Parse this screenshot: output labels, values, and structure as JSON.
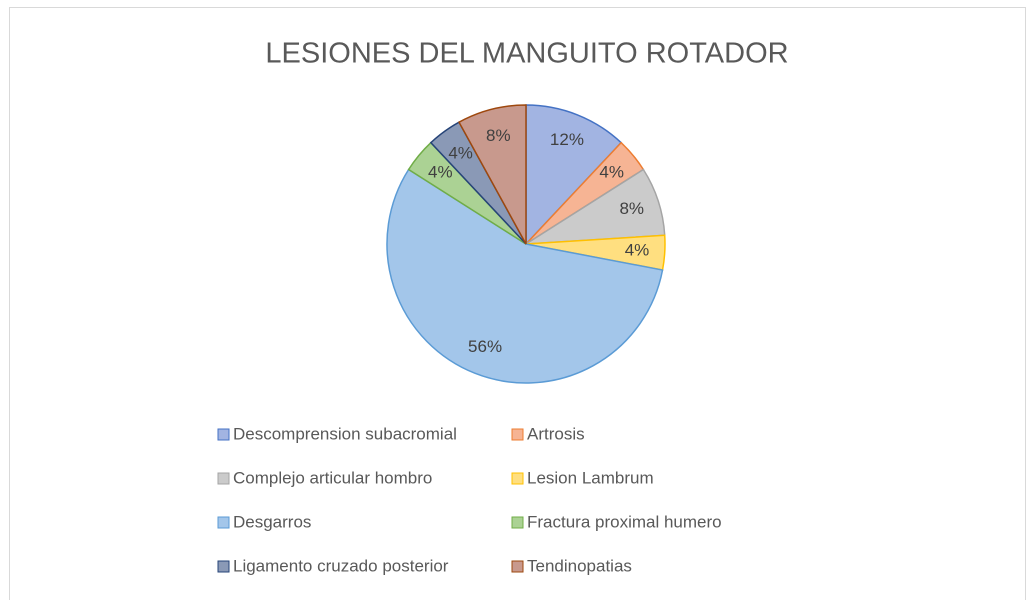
{
  "chart_data": {
    "type": "pie",
    "title": "LESIONES DEL MANGUITO ROTADOR",
    "categories": [
      "Descomprension subacromial",
      "Artrosis",
      "Complejo articular hombro",
      "Lesion Lambrum",
      "Desgarros",
      "Fractura proximal humero",
      "Ligamento cruzado posterior",
      "Tendinopatias"
    ],
    "values": [
      12,
      4,
      8,
      4,
      56,
      4,
      4,
      8
    ],
    "value_labels": [
      "12%",
      "4%",
      "8%",
      "4%",
      "56%",
      "4%",
      "4%",
      "8%"
    ],
    "colors": [
      "#a2b4e2",
      "#f6b494",
      "#cbcbcb",
      "#ffdf80",
      "#a3c6ea",
      "#abd294",
      "#8a99b6",
      "#c8998d"
    ],
    "edge_colors": [
      "#4472c4",
      "#ed7d31",
      "#a5a5a5",
      "#ffc000",
      "#5b9bd5",
      "#70ad47",
      "#264478",
      "#9e480e"
    ],
    "legend": "bottom"
  }
}
